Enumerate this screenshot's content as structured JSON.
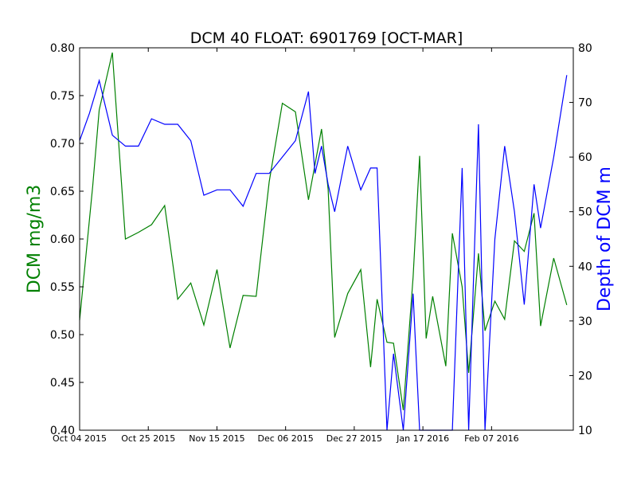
{
  "chart_data": {
    "type": "line",
    "title": "DCM 40 FLOAT: 6901769 [OCT-MAR]",
    "xlabel": "",
    "ylabel_left": "DCM mg/m3",
    "ylabel_right": "Depth of DCM m",
    "xlim": [
      "2015-10-04",
      "2016-03-03"
    ],
    "ylim_left": [
      0.4,
      0.8
    ],
    "ylim_right": [
      10,
      80
    ],
    "x_ticks": [
      {
        "date": "2015-10-04",
        "label": "Oct 04 2015"
      },
      {
        "date": "2015-10-25",
        "label": "Oct 25 2015"
      },
      {
        "date": "2015-11-15",
        "label": "Nov 15 2015"
      },
      {
        "date": "2015-12-06",
        "label": "Dec 06 2015"
      },
      {
        "date": "2015-12-27",
        "label": "Dec 27 2015"
      },
      {
        "date": "2016-01-17",
        "label": "Jan 17 2016"
      },
      {
        "date": "2016-02-07",
        "label": "Feb 07 2016"
      }
    ],
    "y_ticks_left": [
      "0.40",
      "0.45",
      "0.50",
      "0.55",
      "0.60",
      "0.65",
      "0.70",
      "0.75",
      "0.80"
    ],
    "y_ticks_right": [
      "10",
      "20",
      "30",
      "40",
      "50",
      "60",
      "70",
      "80"
    ],
    "grid": false,
    "series": [
      {
        "axis": "left",
        "color": "#008000",
        "x": [
          "2015-10-04",
          "2015-10-08",
          "2015-10-10",
          "2015-10-14",
          "2015-10-18",
          "2015-10-22",
          "2015-10-26",
          "2015-10-30",
          "2015-11-03",
          "2015-11-07",
          "2015-11-11",
          "2015-11-15",
          "2015-11-19",
          "2015-11-23",
          "2015-11-27",
          "2015-12-01",
          "2015-12-05",
          "2015-12-09",
          "2015-12-13",
          "2015-12-17",
          "2015-12-19",
          "2015-12-21",
          "2015-12-25",
          "2015-12-29",
          "2016-01-01",
          "2016-01-03",
          "2016-01-06",
          "2016-01-08",
          "2016-01-11",
          "2016-01-14",
          "2016-01-16",
          "2016-01-18",
          "2016-01-20",
          "2016-01-24",
          "2016-01-26",
          "2016-01-29",
          "2016-01-31",
          "2016-02-03",
          "2016-02-05",
          "2016-02-08",
          "2016-02-11",
          "2016-02-14",
          "2016-02-17",
          "2016-02-20",
          "2016-02-22",
          "2016-02-26",
          "2016-03-01"
        ],
        "y": [
          0.515,
          0.655,
          0.735,
          0.795,
          0.6,
          0.607,
          0.615,
          0.635,
          0.537,
          0.554,
          0.51,
          0.568,
          0.486,
          0.541,
          0.54,
          0.66,
          0.742,
          0.733,
          0.641,
          0.715,
          0.652,
          0.497,
          0.543,
          0.568,
          0.466,
          0.537,
          0.492,
          0.491,
          0.421,
          0.56,
          0.687,
          0.496,
          0.54,
          0.467,
          0.606,
          0.55,
          0.46,
          0.585,
          0.504,
          0.535,
          0.516,
          0.598,
          0.587,
          0.627,
          0.509,
          0.58,
          0.531
        ]
      },
      {
        "axis": "right",
        "color": "#0000ff",
        "x": [
          "2015-10-04",
          "2015-10-07",
          "2015-10-10",
          "2015-10-14",
          "2015-10-18",
          "2015-10-22",
          "2015-10-26",
          "2015-10-30",
          "2015-11-03",
          "2015-11-07",
          "2015-11-11",
          "2015-11-15",
          "2015-11-19",
          "2015-11-23",
          "2015-11-27",
          "2015-12-01",
          "2015-12-05",
          "2015-12-09",
          "2015-12-13",
          "2015-12-15",
          "2015-12-17",
          "2015-12-19",
          "2015-12-21",
          "2015-12-25",
          "2015-12-29",
          "2016-01-01",
          "2016-01-03",
          "2016-01-06",
          "2016-01-08",
          "2016-01-11",
          "2016-01-14",
          "2016-01-16",
          "2016-01-18",
          "2016-01-20",
          "2016-01-24",
          "2016-01-26",
          "2016-01-29",
          "2016-01-31",
          "2016-02-03",
          "2016-02-05",
          "2016-02-08",
          "2016-02-11",
          "2016-02-14",
          "2016-02-17",
          "2016-02-20",
          "2016-02-22",
          "2016-02-26",
          "2016-03-01"
        ],
        "y": [
          63,
          68,
          74,
          64,
          62,
          62,
          67,
          66,
          66,
          63,
          53,
          54,
          54,
          51,
          57,
          57,
          60,
          63,
          72,
          57,
          62,
          55,
          50,
          62,
          54,
          58,
          58,
          10,
          24,
          10,
          35,
          10,
          10,
          10,
          10,
          10,
          58,
          10,
          66,
          10,
          45,
          62,
          50,
          33,
          55,
          47,
          60,
          75
        ]
      }
    ]
  }
}
